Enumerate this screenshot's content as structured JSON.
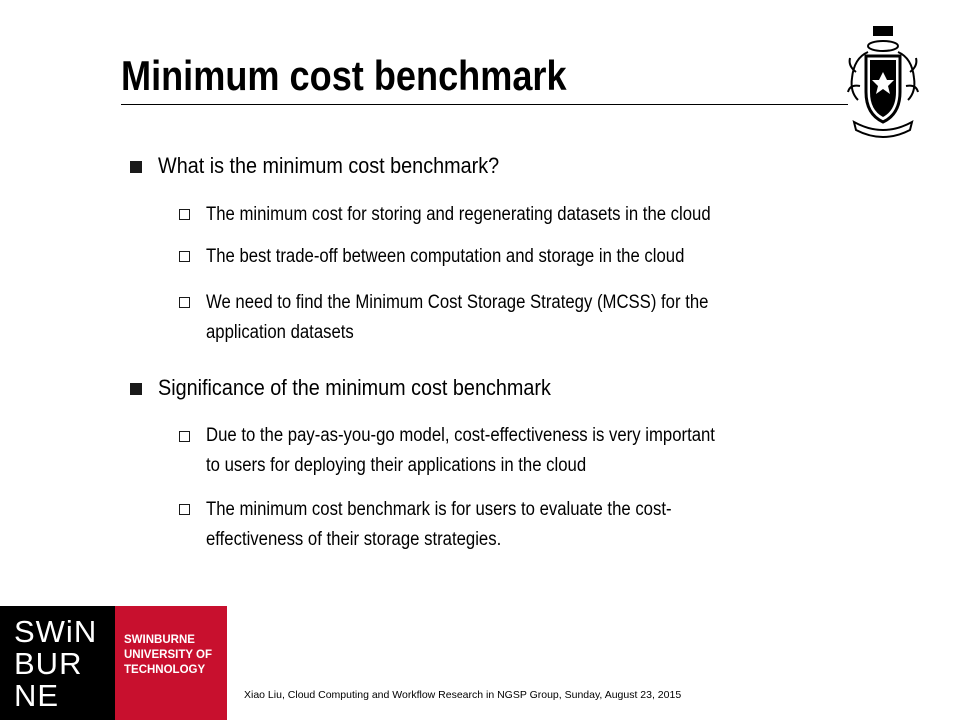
{
  "slide": {
    "title": "Minimum cost benchmark",
    "footer": "Xiao Liu, Cloud Computing and Workflow Research in NGSP Group, Sunday, August 23, 2015",
    "sections": [
      {
        "heading": "What is the minimum cost benchmark?",
        "items": [
          [
            "The minimum cost for storing and regenerating datasets in the cloud"
          ],
          [
            "The best trade-off between computation and storage in the cloud"
          ],
          [
            "We need to find the Minimum Cost Storage Strategy (MCSS) for the",
            "application datasets"
          ]
        ]
      },
      {
        "heading": "Significance of the minimum cost benchmark",
        "items": [
          [
            "Due to the pay-as-you-go model, cost-effectiveness is very important",
            "to users for deploying their applications in the cloud"
          ],
          [
            "The minimum cost benchmark is for users to evaluate the cost-",
            "effectiveness of their storage strategies."
          ]
        ]
      }
    ]
  },
  "logo": {
    "name_lines": [
      "SWiN",
      "BUR",
      "NE"
    ],
    "sub_lines": [
      "SWINBURNE",
      "UNIVERSITY OF",
      "TECHNOLOGY"
    ],
    "black": "#000000",
    "red": "#c8102e"
  },
  "icons": {
    "crest": "university-crest-icon",
    "bullet_l1": "filled-square-bullet",
    "bullet_l2": "hollow-square-bullet"
  }
}
